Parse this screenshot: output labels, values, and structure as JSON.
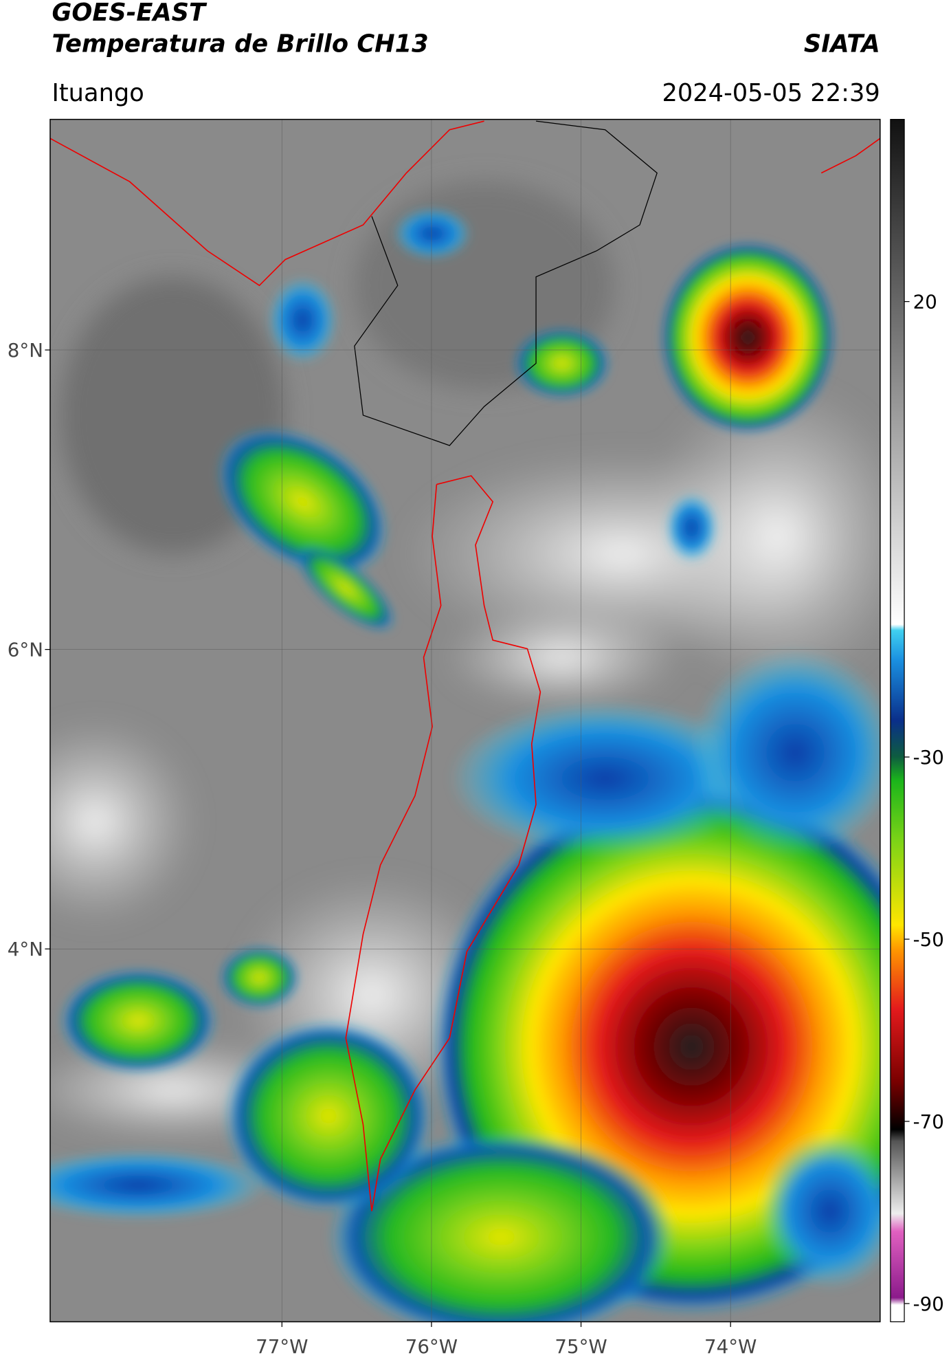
{
  "header": {
    "satellite": "GOES-EAST",
    "product": "Temperatura de Brillo CH13",
    "agency": "SIATA",
    "region": "Ituango",
    "datetime": "2024-05-05 22:39"
  },
  "map": {
    "xlim": [
      -78.55,
      -73.0
    ],
    "ylim": [
      1.51,
      9.54
    ],
    "lat_ticks": [
      {
        "value": 8,
        "label": "8°N"
      },
      {
        "value": 6,
        "label": "6°N"
      },
      {
        "value": 4,
        "label": "4°N"
      }
    ],
    "lon_ticks": [
      {
        "value": -77,
        "label": "77°W"
      },
      {
        "value": -76,
        "label": "76°W"
      },
      {
        "value": -75,
        "label": "75°W"
      },
      {
        "value": -74,
        "label": "74°W"
      }
    ],
    "grid": true
  },
  "colorbar": {
    "clim": [
      -92,
      40
    ],
    "ticks": [
      20,
      -30,
      -50,
      -70,
      -90
    ]
  }
}
